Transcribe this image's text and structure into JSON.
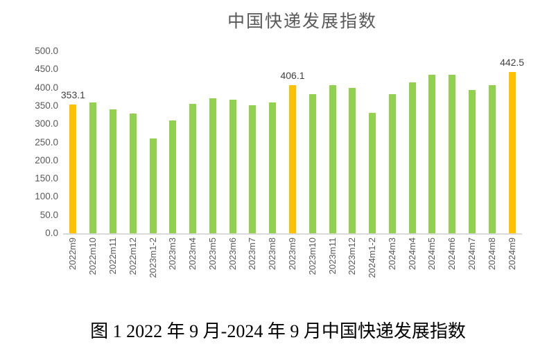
{
  "title": "中国快递发展指数",
  "caption": "图 1 2022 年 9 月-2024 年 9 月中国快递发展指数",
  "chart_data": {
    "type": "bar",
    "title": "中国快递发展指数",
    "categories": [
      "2022m9",
      "2022m10",
      "2022m11",
      "2022m12",
      "2023m1-2",
      "2023m3",
      "2023m4",
      "2023m5",
      "2023m6",
      "2023m7",
      "2023m8",
      "2023m9",
      "2023m10",
      "2023m11",
      "2023m12",
      "2024m1-2",
      "2024m3",
      "2024m4",
      "2024m5",
      "2024m6",
      "2024m7",
      "2024m8",
      "2024m9"
    ],
    "values": [
      353.1,
      360,
      340,
      329,
      260,
      310,
      356,
      370,
      366,
      351,
      359,
      406.1,
      383,
      406,
      400,
      330,
      382,
      415,
      435,
      435,
      393,
      406,
      442.5
    ],
    "data_labels": [
      {
        "index": 0,
        "text": "353.1"
      },
      {
        "index": 11,
        "text": "406.1"
      },
      {
        "index": 22,
        "text": "442.5"
      }
    ],
    "highlighted_indices": [
      0,
      11,
      22
    ],
    "bar_color": "#92D050",
    "highlight_color": "#FFC000",
    "label_color": "#404040",
    "axis_line_color": "#D9D9D9",
    "tick_label_color": "#595959",
    "xlabel": "",
    "ylabel": "",
    "ylim": [
      0,
      500
    ],
    "y_tick_step": 50,
    "y_tick_labels": [
      "0.0",
      "50.0",
      "100.0",
      "150.0",
      "200.0",
      "250.0",
      "300.0",
      "350.0",
      "400.0",
      "450.0",
      "500.0"
    ],
    "grid": false,
    "legend": false,
    "x_tick_rotation": 90
  }
}
